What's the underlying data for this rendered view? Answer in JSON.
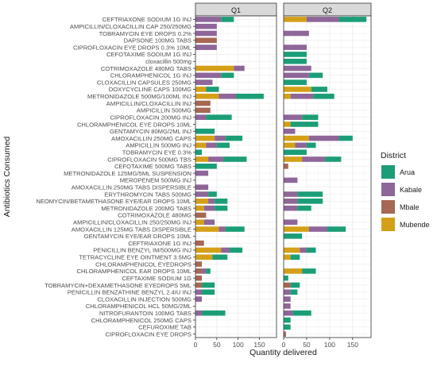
{
  "chart_data": {
    "type": "bar",
    "orientation": "horizontal",
    "stacked": true,
    "facets": [
      "Q1",
      "Q2"
    ],
    "xlabel": "Quantity delivered",
    "ylabel": "Antibiotics Consumed",
    "xlim": [
      0,
      190
    ],
    "xticks": [
      0,
      50,
      100,
      150
    ],
    "grid": true,
    "legend": {
      "title": "District",
      "position": "right"
    },
    "series_names": [
      "Arua",
      "Kabale",
      "Mbale",
      "Mubende"
    ],
    "colors": {
      "Arua": "#1b9e77",
      "Kabale": "#8e6699",
      "Mbale": "#a66753",
      "Mubende": "#d4a017"
    },
    "stack_order": [
      "Mubende",
      "Mbale",
      "Kabale",
      "Arua"
    ],
    "categories": [
      "CEFTRIAXONE SODIUM 1G INJ",
      "AMPICILLIN/CLOXACILLIN CAP 250/250MG",
      "TOBRAMYCIN EYE DROPS 0.2%",
      "DAPSONE 100MG TABS",
      "CIPROFLOXACIN EYE DROPS 0.3% 10ML",
      "CEFOTAXIME SODIUM 1G INJ",
      "cloxacillin 500mg",
      "COTRIMOXAZOLE 480MG TABS",
      "CHLORAMPHENICOL 1G INJ",
      "CLOXACILLIN CAPSULES 250MG",
      "DOXYCYCLINE CAPS 100MG",
      "METRONIDAZOLE 500MG/100ML INJ",
      "AMPICILLIN/CLOXACILLIN INJ",
      "AMPICILLIN 500MG",
      "CIPROFLOXACIN 200MG INJ",
      "CHLORAMPHENICOL EYE DROPS 10ML",
      "GENTAMYCIN 80MG/2ML INJ",
      "AMOXACILLIN 250MG CAPS",
      "AMPICILLIN 500MG INJ",
      "TOBRAMYCIN EYE 0.3%",
      "CIPROFLOXACIN 500MG TBS",
      "CEFOTAXIME 500MG TABS",
      "METRONIDAZOLE 125MG/5ML SUSPENSION",
      "MEROPENEM 500MG INJ",
      "AMOXACILLIN 250MG TABS DISPERSIBLE",
      "ERYTHROMYCIN TABS 500MG",
      "NEOMYCIN/BETAMETHASONE EYE/EAR DROPS 10ML",
      "METRONIDAZOLE 200MG TABS",
      "COTRIMOXAZOLE 480MG",
      "AMPICILLIN/CLOXACILLIN 250/250MG INJ",
      "AMOXACILLIN 125MG TABS DISPERSIBLE",
      "GENTAMYCIN EYE/EAR DROPS 10ML",
      "CEFTRIAXONE 1G INJ",
      "PENICILLIN BENZYL IM/500MG INJ",
      "TETRACYCLINE EYE OINTMENT 3.5MG",
      "CHLORAMPHENICOL EYEDROPS",
      "CHLORAMPHENICOL EAR DROPS 10ML",
      "CEFTAXIME SODIUM 1G",
      "TOBRAMYCIN+DEXAMETHASONE EYEDROPS 5ML",
      "PENICILLIN BENZATHINE BENZYL 2.4IU INJ",
      "CLOXACILLIN INJECTION 500MG",
      "CHLORAMPHENICOL HCL 50MG/2ML",
      "NITROFURANTOIN 100MG TABS",
      "CHLORAMPHENICOL 250MG CAPS",
      "CEFUROXIME TAB",
      "CIPROFLOXACIN EYE DROPS"
    ],
    "panels": [
      {
        "facet": "Q1",
        "series": [
          {
            "name": "Mubende",
            "values": [
              0,
              0,
              0,
              0,
              0,
              0,
              0,
              90,
              0,
              0,
              25,
              55,
              0,
              0,
              0,
              0,
              0,
              45,
              25,
              0,
              30,
              0,
              0,
              0,
              0,
              0,
              30,
              20,
              0,
              20,
              55,
              0,
              0,
              60,
              40,
              0,
              0,
              0,
              0,
              0,
              0,
              0,
              0,
              0,
              0,
              0
            ]
          },
          {
            "name": "Mbale",
            "values": [
              0,
              0,
              0,
              50,
              0,
              0,
              0,
              0,
              0,
              0,
              0,
              0,
              35,
              35,
              0,
              0,
              0,
              0,
              0,
              0,
              0,
              0,
              0,
              0,
              0,
              0,
              0,
              0,
              25,
              0,
              0,
              0,
              20,
              0,
              0,
              15,
              15,
              15,
              15,
              0,
              0,
              0,
              0,
              0,
              0,
              0
            ]
          },
          {
            "name": "Kabale",
            "values": [
              60,
              50,
              50,
              0,
              50,
              0,
              0,
              25,
              60,
              40,
              0,
              40,
              0,
              0,
              25,
              0,
              0,
              25,
              25,
              0,
              35,
              0,
              30,
              0,
              30,
              30,
              15,
              25,
              0,
              25,
              15,
              0,
              0,
              20,
              0,
              0,
              10,
              0,
              0,
              15,
              15,
              0,
              15,
              0,
              0,
              0
            ]
          },
          {
            "name": "Arua",
            "values": [
              30,
              0,
              0,
              0,
              0,
              0,
              0,
              0,
              30,
              0,
              30,
              65,
              0,
              0,
              60,
              0,
              45,
              40,
              30,
              15,
              55,
              50,
              0,
              0,
              0,
              20,
              30,
              30,
              0,
              0,
              45,
              0,
              0,
              30,
              35,
              0,
              10,
              0,
              30,
              30,
              0,
              0,
              55,
              0,
              0,
              0
            ]
          }
        ]
      },
      {
        "facet": "Q2",
        "series": [
          {
            "name": "Mubende",
            "values": [
              50,
              0,
              0,
              0,
              0,
              0,
              0,
              0,
              0,
              0,
              60,
              15,
              0,
              0,
              0,
              15,
              0,
              55,
              25,
              0,
              40,
              0,
              0,
              0,
              0,
              0,
              0,
              0,
              0,
              0,
              55,
              0,
              0,
              35,
              15,
              0,
              40,
              0,
              0,
              0,
              0,
              0,
              0,
              0,
              0,
              0
            ]
          },
          {
            "name": "Mbale",
            "values": [
              0,
              0,
              0,
              0,
              0,
              0,
              0,
              0,
              0,
              0,
              0,
              0,
              0,
              0,
              0,
              0,
              0,
              0,
              0,
              0,
              0,
              10,
              0,
              0,
              0,
              0,
              0,
              0,
              0,
              0,
              0,
              0,
              0,
              0,
              0,
              0,
              0,
              0,
              15,
              0,
              0,
              0,
              0,
              0,
              0,
              5
            ]
          },
          {
            "name": "Kabale",
            "values": [
              70,
              0,
              55,
              0,
              50,
              0,
              0,
              60,
              55,
              0,
              0,
              50,
              0,
              0,
              40,
              0,
              25,
              65,
              25,
              0,
              50,
              0,
              0,
              30,
              0,
              30,
              30,
              30,
              0,
              30,
              40,
              0,
              0,
              15,
              0,
              0,
              0,
              0,
              0,
              15,
              15,
              15,
              20,
              0,
              0,
              0
            ]
          },
          {
            "name": "Arua",
            "values": [
              60,
              0,
              0,
              0,
              0,
              50,
              50,
              0,
              30,
              50,
              35,
              45,
              0,
              0,
              35,
              60,
              0,
              30,
              20,
              50,
              35,
              0,
              0,
              0,
              0,
              55,
              55,
              30,
              0,
              0,
              40,
              40,
              0,
              20,
              20,
              0,
              30,
              10,
              20,
              15,
              0,
              0,
              40,
              15,
              15,
              0
            ]
          }
        ]
      }
    ]
  }
}
